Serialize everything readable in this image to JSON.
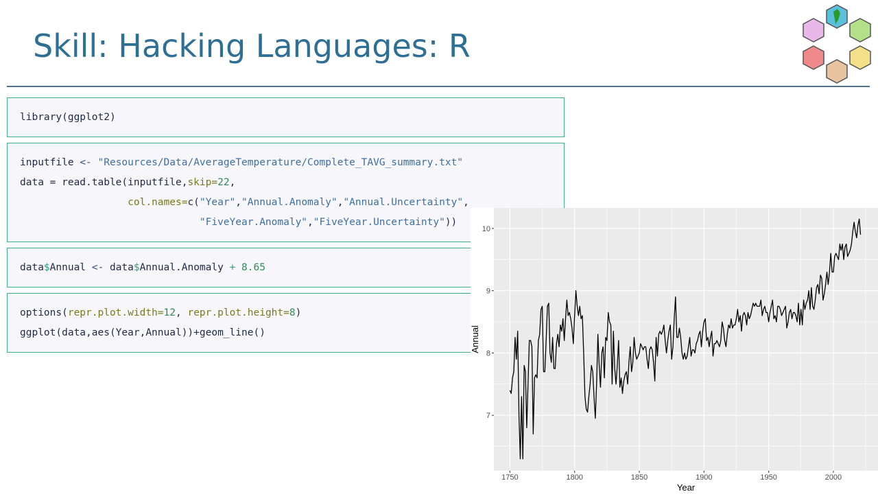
{
  "title": "Skill: Hacking Languages: R",
  "code_cells": [
    {
      "lines": [
        [
          "library",
          "(ggplot2)"
        ]
      ]
    },
    {
      "lines": [
        [
          "inputfile ",
          "<- ",
          "\"Resources/Data/AverageTemperature/Complete_TAVG_summary.txt\""
        ],
        [
          "data = read.table(inputfile,",
          "skip=",
          "22",
          ","
        ],
        [
          "                  col.names=",
          "c(",
          "\"Year\"",
          ",",
          "\"Annual.Anomaly\"",
          ",",
          "\"Annual.Uncertainty\"",
          ","
        ],
        [
          "                              \"FiveYear.Anomaly\"",
          ",",
          "\"FiveYear.Uncertainty\"",
          "))"
        ]
      ]
    },
    {
      "lines": [
        [
          "data",
          "$",
          "Annual ",
          "<- ",
          "data",
          "$",
          "Annual.Anomaly ",
          "+ ",
          "8.65"
        ]
      ]
    },
    {
      "lines": [
        [
          "options",
          "(",
          "repr.plot.width=",
          "12",
          ", ",
          "repr.plot.height=",
          "8",
          ")"
        ],
        [
          "ggplot(data,aes(Year,Annual))+geom_line()"
        ]
      ]
    }
  ],
  "chart_data": {
    "type": "line",
    "x_label": "Year",
    "y_label": "Annual",
    "color": "#000000",
    "grid": true,
    "xlim": [
      1737.6,
      2034.5
    ],
    "ylim": [
      6.11,
      10.33
    ],
    "xticks": [
      1750,
      1800,
      1850,
      1900,
      1950,
      2000
    ],
    "yticks": [
      7,
      8,
      9,
      10
    ],
    "x": [
      1750,
      1751,
      1752,
      1753,
      1754,
      1755,
      1756,
      1757,
      1758,
      1759,
      1760,
      1761,
      1762,
      1763,
      1764,
      1765,
      1766,
      1767,
      1768,
      1769,
      1770,
      1771,
      1772,
      1773,
      1774,
      1775,
      1776,
      1777,
      1778,
      1779,
      1780,
      1781,
      1782,
      1783,
      1784,
      1785,
      1786,
      1787,
      1788,
      1789,
      1790,
      1791,
      1792,
      1793,
      1794,
      1795,
      1796,
      1797,
      1798,
      1799,
      1800,
      1801,
      1802,
      1803,
      1804,
      1805,
      1806,
      1807,
      1808,
      1809,
      1810,
      1811,
      1812,
      1813,
      1814,
      1815,
      1816,
      1817,
      1818,
      1819,
      1820,
      1821,
      1822,
      1823,
      1824,
      1825,
      1826,
      1827,
      1828,
      1829,
      1830,
      1831,
      1832,
      1833,
      1834,
      1835,
      1836,
      1837,
      1838,
      1839,
      1840,
      1841,
      1842,
      1843,
      1844,
      1845,
      1846,
      1847,
      1848,
      1849,
      1850,
      1851,
      1852,
      1853,
      1854,
      1855,
      1856,
      1857,
      1858,
      1859,
      1860,
      1861,
      1862,
      1863,
      1864,
      1865,
      1866,
      1867,
      1868,
      1869,
      1870,
      1871,
      1872,
      1873,
      1874,
      1875,
      1876,
      1877,
      1878,
      1879,
      1880,
      1881,
      1882,
      1883,
      1884,
      1885,
      1886,
      1887,
      1888,
      1889,
      1890,
      1891,
      1892,
      1893,
      1894,
      1895,
      1896,
      1897,
      1898,
      1899,
      1900,
      1901,
      1902,
      1903,
      1904,
      1905,
      1906,
      1907,
      1908,
      1909,
      1910,
      1911,
      1912,
      1913,
      1914,
      1915,
      1916,
      1917,
      1918,
      1919,
      1920,
      1921,
      1922,
      1923,
      1924,
      1925,
      1926,
      1927,
      1928,
      1929,
      1930,
      1931,
      1932,
      1933,
      1934,
      1935,
      1936,
      1937,
      1938,
      1939,
      1940,
      1941,
      1942,
      1943,
      1944,
      1945,
      1946,
      1947,
      1948,
      1949,
      1950,
      1951,
      1952,
      1953,
      1954,
      1955,
      1956,
      1957,
      1958,
      1959,
      1960,
      1961,
      1962,
      1963,
      1964,
      1965,
      1966,
      1967,
      1968,
      1969,
      1970,
      1971,
      1972,
      1973,
      1974,
      1975,
      1976,
      1977,
      1978,
      1979,
      1980,
      1981,
      1982,
      1983,
      1984,
      1985,
      1986,
      1987,
      1988,
      1989,
      1990,
      1991,
      1992,
      1993,
      1994,
      1995,
      1996,
      1997,
      1998,
      1999,
      2000,
      2001,
      2002,
      2003,
      2004,
      2005,
      2006,
      2007,
      2008,
      2009,
      2010,
      2011,
      2012,
      2013,
      2014,
      2015,
      2016,
      2017,
      2018,
      2019,
      2020,
      2021
    ],
    "values": [
      7.4,
      7.35,
      7.6,
      7.7,
      8.25,
      7.9,
      8.35,
      7.0,
      6.3,
      7.3,
      6.3,
      7.8,
      7.7,
      6.8,
      7.5,
      8.2,
      8.2,
      8.1,
      6.7,
      7.6,
      7.65,
      7.6,
      8.2,
      8.3,
      8.7,
      8.75,
      7.7,
      7.7,
      8.2,
      8.75,
      8.8,
      8.0,
      7.85,
      8.25,
      7.75,
      7.75,
      8.15,
      8.3,
      8.1,
      8.45,
      8.35,
      8.55,
      8.2,
      8.55,
      8.85,
      8.6,
      8.65,
      8.55,
      8.4,
      8.15,
      8.6,
      9.0,
      8.75,
      8.6,
      8.75,
      8.55,
      8.6,
      8.0,
      7.3,
      7.1,
      7.05,
      7.3,
      7.5,
      7.8,
      7.7,
      7.3,
      6.95,
      7.5,
      8.3,
      7.8,
      7.45,
      8.0,
      8.1,
      7.6,
      8.25,
      8.2,
      8.65,
      8.5,
      8.45,
      7.5,
      8.35,
      7.75,
      7.5,
      7.8,
      8.2,
      7.45,
      7.6,
      7.35,
      7.55,
      7.65,
      7.7,
      7.5,
      7.85,
      8.1,
      7.7,
      7.85,
      8.25,
      8.0,
      7.9,
      7.95,
      8.0,
      8.15,
      8.1,
      8.05,
      8.1,
      8.1,
      7.9,
      7.75,
      8.05,
      8.1,
      8.05,
      7.85,
      7.55,
      8.25,
      7.95,
      8.3,
      8.35,
      8.3,
      8.35,
      8.45,
      8.2,
      8.0,
      8.2,
      8.35,
      8.45,
      7.9,
      8.1,
      8.55,
      8.9,
      8.25,
      8.25,
      8.4,
      8.25,
      8.0,
      7.9,
      8.0,
      7.9,
      7.95,
      8.1,
      8.25,
      7.95,
      8.05,
      8.05,
      8.0,
      8.15,
      8.2,
      8.3,
      8.35,
      8.1,
      8.35,
      8.5,
      8.55,
      8.2,
      8.25,
      8.1,
      8.25,
      8.35,
      7.95,
      8.15,
      8.15,
      8.2,
      8.15,
      8.1,
      8.2,
      8.5,
      8.4,
      8.2,
      8.1,
      8.3,
      8.45,
      8.4,
      8.55,
      8.4,
      8.45,
      8.45,
      8.55,
      8.7,
      8.5,
      8.6,
      8.35,
      8.6,
      8.65,
      8.6,
      8.45,
      8.65,
      8.55,
      8.6,
      8.7,
      8.8,
      8.75,
      8.8,
      8.75,
      8.75,
      8.75,
      8.85,
      8.6,
      8.7,
      8.75,
      8.65,
      8.65,
      8.5,
      8.65,
      8.75,
      8.85,
      8.55,
      8.6,
      8.5,
      8.75,
      8.75,
      8.7,
      8.6,
      8.65,
      8.7,
      8.75,
      8.4,
      8.5,
      8.65,
      8.7,
      8.55,
      8.65,
      8.65,
      8.6,
      8.5,
      8.8,
      8.45,
      8.7,
      8.45,
      8.85,
      8.7,
      8.8,
      8.85,
      9.0,
      8.7,
      9.05,
      8.75,
      8.7,
      8.85,
      9.05,
      9.1,
      8.95,
      9.25,
      9.2,
      8.85,
      8.95,
      9.1,
      9.3,
      9.1,
      9.3,
      9.6,
      9.3,
      9.3,
      9.55,
      9.6,
      9.55,
      9.5,
      9.75,
      9.65,
      9.75,
      9.5,
      9.7,
      9.75,
      9.55,
      9.6,
      9.65,
      9.75,
      9.95,
      10.1,
      9.95,
      9.85,
      10.05,
      10.15,
      9.9
    ]
  }
}
